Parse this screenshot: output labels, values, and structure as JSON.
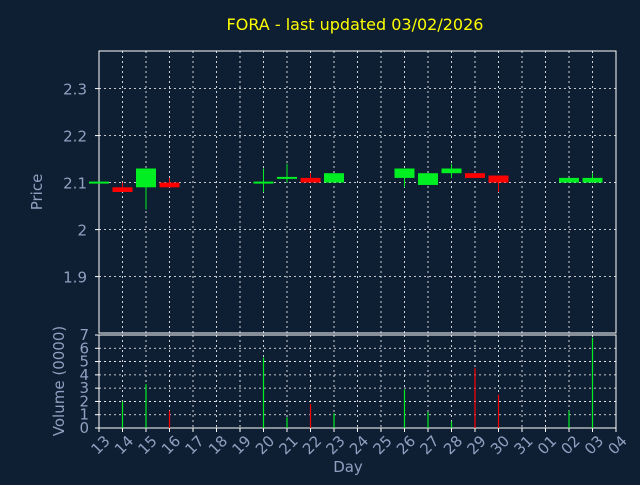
{
  "chart_data": {
    "type": "candlestick",
    "title": "FORA - last updated 03/02/2026",
    "colors": {
      "background": "#0f1f33",
      "axis": "#ffffff",
      "grid": "#ffffff",
      "tick_text": "#8fa0c0",
      "axis_label_text": "#8fa0c0",
      "title_text": "#ffff00",
      "up": "#00ee22",
      "down": "#ff0000"
    },
    "x": {
      "label": "Day",
      "ticks": [
        "13",
        "14",
        "15",
        "16",
        "17",
        "18",
        "19",
        "20",
        "21",
        "22",
        "23",
        "24",
        "25",
        "26",
        "27",
        "28",
        "29",
        "30",
        "31",
        "01",
        "02",
        "03",
        "04"
      ]
    },
    "price_panel": {
      "ylabel": "Price",
      "ylim": [
        1.78,
        2.38
      ],
      "ticks": [
        1.9,
        2,
        2.1,
        2.2,
        2.3
      ],
      "tick_labels": [
        "1.9",
        "2",
        "2.1",
        "2.2",
        "2.3"
      ],
      "candles": [
        {
          "x": "13",
          "open": 2.1,
          "close": 2.1,
          "high": 2.1,
          "low": 2.1
        },
        {
          "x": "14",
          "open": 2.09,
          "close": 2.08,
          "high": 2.1,
          "low": 2.08
        },
        {
          "x": "15",
          "open": 2.09,
          "close": 2.13,
          "high": 2.13,
          "low": 2.043
        },
        {
          "x": "16",
          "open": 2.1,
          "close": 2.09,
          "high": 2.11,
          "low": 2.09
        },
        {
          "x": "20",
          "open": 2.1,
          "close": 2.1,
          "high": 2.13,
          "low": 2.08
        },
        {
          "x": "21",
          "open": 2.11,
          "close": 2.11,
          "high": 2.14,
          "low": 2.1
        },
        {
          "x": "22",
          "open": 2.11,
          "close": 2.1,
          "high": 2.12,
          "low": 2.1
        },
        {
          "x": "23",
          "open": 2.1,
          "close": 2.12,
          "high": 2.12,
          "low": 2.1
        },
        {
          "x": "26",
          "open": 2.11,
          "close": 2.13,
          "high": 2.13,
          "low": 2.09
        },
        {
          "x": "27",
          "open": 2.095,
          "close": 2.12,
          "high": 2.12,
          "low": 2.095
        },
        {
          "x": "28",
          "open": 2.12,
          "close": 2.13,
          "high": 2.14,
          "low": 2.11
        },
        {
          "x": "29",
          "open": 2.12,
          "close": 2.11,
          "high": 2.12,
          "low": 2.11
        },
        {
          "x": "30",
          "open": 2.115,
          "close": 2.1,
          "high": 2.115,
          "low": 2.08
        },
        {
          "x": "02",
          "open": 2.1,
          "close": 2.11,
          "high": 2.11,
          "low": 2.1
        },
        {
          "x": "03",
          "open": 2.1,
          "close": 2.11,
          "high": 2.12,
          "low": 2.1
        }
      ]
    },
    "volume_panel": {
      "ylabel": "Volume (0000)",
      "ylim": [
        0,
        7
      ],
      "ticks": [
        0,
        1,
        2,
        3,
        4,
        5,
        6,
        7
      ],
      "tick_labels": [
        "0",
        "1",
        "2",
        "3",
        "4",
        "5",
        "6",
        "7"
      ],
      "bars": [
        {
          "x": "14",
          "value": 2.0,
          "dir": "up"
        },
        {
          "x": "15",
          "value": 3.3,
          "dir": "up"
        },
        {
          "x": "16",
          "value": 1.3,
          "dir": "down"
        },
        {
          "x": "20",
          "value": 5.3,
          "dir": "up"
        },
        {
          "x": "21",
          "value": 0.8,
          "dir": "up"
        },
        {
          "x": "22",
          "value": 1.8,
          "dir": "down"
        },
        {
          "x": "23",
          "value": 1.1,
          "dir": "up"
        },
        {
          "x": "26",
          "value": 2.9,
          "dir": "up"
        },
        {
          "x": "27",
          "value": 1.2,
          "dir": "up"
        },
        {
          "x": "28",
          "value": 0.5,
          "dir": "up"
        },
        {
          "x": "29",
          "value": 4.5,
          "dir": "down"
        },
        {
          "x": "30",
          "value": 2.5,
          "dir": "down"
        },
        {
          "x": "02",
          "value": 1.3,
          "dir": "up"
        },
        {
          "x": "03",
          "value": 6.8,
          "dir": "up"
        }
      ]
    }
  }
}
